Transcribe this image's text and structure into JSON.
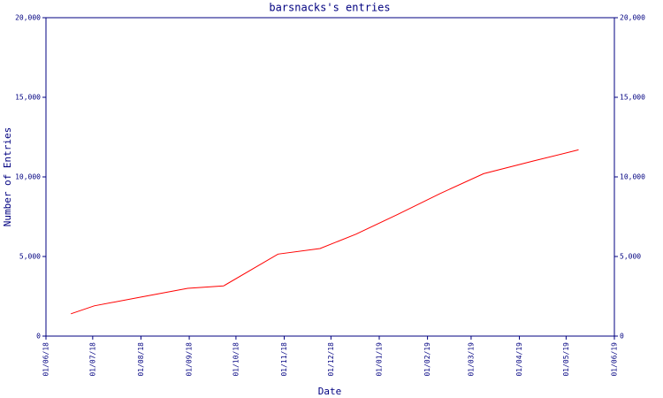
{
  "chart_data": {
    "type": "line",
    "title": "barsnacks's entries",
    "x_label": "Date",
    "y_label": "Number of Entries",
    "x": [
      "17/06/18",
      "02/07/18",
      "01/08/18",
      "31/08/18",
      "23/09/18",
      "28/10/18",
      "24/11/18",
      "17/12/18",
      "13/01/19",
      "09/02/19",
      "09/03/19",
      "10/04/19",
      "09/05/19"
    ],
    "series": [
      {
        "color": "#ff0000",
        "values": [
          1400,
          1900,
          2450,
          3000,
          3150,
          5150,
          5500,
          6400,
          7650,
          8950,
          10200,
          11000,
          11700
        ]
      }
    ],
    "xticks": [
      "01/06/18",
      "01/07/18",
      "01/08/18",
      "01/09/18",
      "01/10/18",
      "01/11/18",
      "01/12/18",
      "01/01/19",
      "01/02/19",
      "01/03/19",
      "01/04/19",
      "01/05/19",
      "01/06/19"
    ],
    "xlim": [
      "01/06/18",
      "01/06/19"
    ],
    "ylim": [
      0,
      20000
    ],
    "yticks": [
      0,
      {
        "value": 5000,
        "label": "5,000"
      },
      {
        "value": 10000,
        "label": "10,000"
      },
      {
        "value": 15000,
        "label": "15,000"
      },
      {
        "value": 20000,
        "label": "20,000"
      }
    ],
    "y2lim": [
      0,
      20000
    ],
    "y2ticks": [
      0,
      {
        "value": 5000,
        "label": "5,000"
      },
      {
        "value": 10000,
        "label": "10,000"
      },
      {
        "value": 15000,
        "label": "15,000"
      },
      {
        "value": 20000,
        "label": "20,000"
      }
    ],
    "axis_color": "#000080",
    "grid": false
  }
}
